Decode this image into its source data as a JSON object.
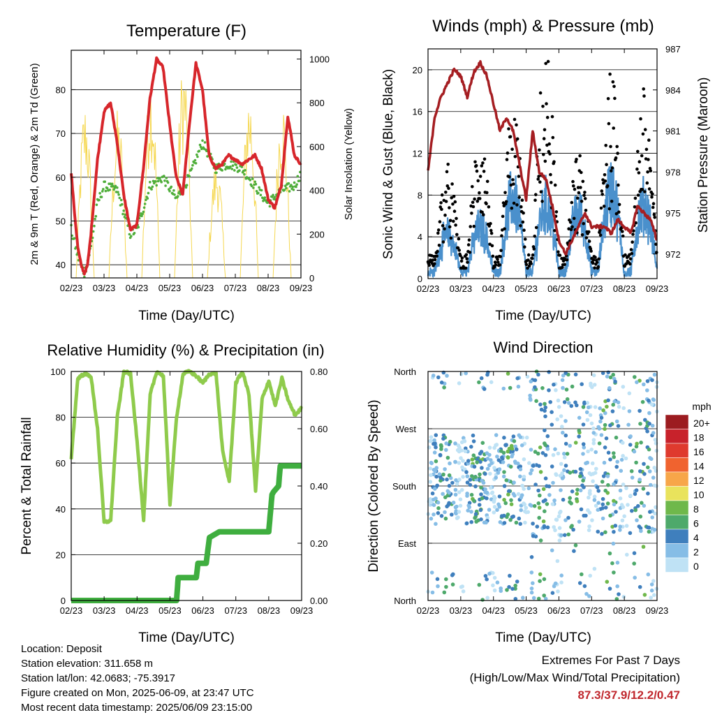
{
  "colors": {
    "temp": "#d7262b",
    "dew": "#4fae3a",
    "solar": "#f5d750",
    "gust": "#000000",
    "sonic": "#4a90cc",
    "pressure": "#a51e22",
    "rh": "#8fcb4c",
    "precip": "#3fae3f"
  },
  "footer": {
    "location": "Location: Deposit",
    "elevation": "Station elevation: 311.658 m",
    "latlon": "Station lat/lon: 42.0683; -75.3917",
    "created": "Figure created on Mon, 2025-06-09, at 23:47 UTC",
    "recent": "Most recent data timestamp: 2025/06/09 23:15:00",
    "extremes_title": "Extremes For Past 7 Days",
    "extremes_sub": "(High/Low/Max Wind/Total Precipitation)",
    "extremes_values": "87.3/37.9/12.2/0.47"
  },
  "chart_data": [
    {
      "id": "temperature",
      "type": "line",
      "title": "Temperature (F)",
      "xlabel": "Time (Day/UTC)",
      "ylabel": "2m & 9m T (Red, Orange) & 2m Td (Green)",
      "ylabel_right": "Solar Insolation (Yellow)",
      "x_ticks": [
        "02/23",
        "03/23",
        "04/23",
        "05/23",
        "06/23",
        "07/23",
        "08/23",
        "09/23"
      ],
      "ylim": [
        37,
        89
      ],
      "y_ticks": [
        40,
        50,
        60,
        70,
        80
      ],
      "y2lim": [
        0,
        1040
      ],
      "y2_ticks": [
        0,
        200,
        400,
        600,
        800,
        1000
      ],
      "grid": true,
      "series": [
        {
          "key": "temp",
          "x": [
            0,
            0.1,
            0.2,
            0.3,
            0.4,
            0.5,
            0.6,
            0.8,
            1.0,
            1.2,
            1.4,
            1.6,
            1.8,
            2.0,
            2.2,
            2.4,
            2.6,
            2.8,
            3.0,
            3.2,
            3.4,
            3.6,
            3.8,
            4.0,
            4.2,
            4.4,
            4.6,
            4.8,
            5.0,
            5.2,
            5.4,
            5.6,
            5.8,
            6.0,
            6.2,
            6.4,
            6.6,
            6.8,
            7.0
          ],
          "y": [
            61,
            52,
            44,
            40,
            38,
            40,
            47,
            64,
            75,
            77,
            68,
            56,
            48,
            49,
            62,
            78,
            87,
            85,
            72,
            60,
            56,
            72,
            86,
            80,
            65,
            62,
            63,
            65,
            64,
            63,
            64,
            65,
            62,
            55,
            53,
            58,
            74,
            65,
            63
          ]
        },
        {
          "key": "dew",
          "x": [
            0,
            0.2,
            0.4,
            0.6,
            0.8,
            1.0,
            1.4,
            1.8,
            2.0,
            2.4,
            2.8,
            3.2,
            3.6,
            4.0,
            4.4,
            4.8,
            5.2,
            5.6,
            6.0,
            6.4,
            6.8,
            7.0
          ],
          "y": [
            48,
            42,
            38,
            44,
            54,
            58,
            57,
            47,
            48,
            58,
            60,
            55,
            60,
            68,
            62,
            63,
            62,
            58,
            54,
            57,
            58,
            61
          ]
        },
        {
          "key": "solar",
          "type": "area",
          "daily_peaks": [
            820,
            780,
            960,
            1020,
            560,
            890,
            860
          ]
        }
      ]
    },
    {
      "id": "winds",
      "type": "scatter",
      "title": "Winds (mph) & Pressure (mb)",
      "xlabel": "Time (Day/UTC)",
      "ylabel": "Sonic Wind & Gust (Blue, Black)",
      "ylabel_right": "Station Pressure (Maroon)",
      "x_ticks": [
        "02/23",
        "03/23",
        "04/23",
        "05/23",
        "06/23",
        "07/23",
        "08/23",
        "09/23"
      ],
      "ylim": [
        0,
        22
      ],
      "y_ticks": [
        0,
        4,
        8,
        12,
        16,
        20
      ],
      "y2lim": [
        970.2,
        987
      ],
      "y2_ticks": [
        972,
        975,
        978,
        981,
        984,
        987
      ],
      "grid": true,
      "series": [
        {
          "key": "gust",
          "name": "Gust",
          "daily_peak": [
            9,
            13,
            15,
            20,
            10,
            19,
            17,
            18
          ]
        },
        {
          "key": "sonic",
          "name": "Sonic Wind",
          "daily_peak": [
            5,
            6,
            10,
            9,
            8,
            11,
            9,
            10
          ]
        },
        {
          "key": "pressure",
          "name": "Station Pressure",
          "x": [
            0,
            0.2,
            0.4,
            0.6,
            0.8,
            1.0,
            1.2,
            1.4,
            1.6,
            1.8,
            2.0,
            2.2,
            2.4,
            2.6,
            2.8,
            3.0,
            3.2,
            3.4,
            3.6,
            3.8,
            4.0,
            4.2,
            4.4,
            4.6,
            4.8,
            5.0,
            5.2,
            5.4,
            5.6,
            5.8,
            6.0,
            6.2,
            6.4,
            6.6,
            6.8,
            7.0
          ],
          "y": [
            978,
            982,
            983.5,
            984.5,
            985.5,
            985,
            983.5,
            985.3,
            986,
            985,
            983,
            981,
            982,
            981,
            978.5,
            976,
            981,
            978,
            977.5,
            975.5,
            973,
            972,
            973,
            974,
            975,
            974,
            974,
            974,
            973.5,
            974.5,
            974,
            973.5,
            975.5,
            975,
            974.5,
            973
          ]
        }
      ]
    },
    {
      "id": "humidity",
      "type": "line",
      "title": "Relative Humidity (%) & Precipitation (in)",
      "xlabel": "Time (Day/UTC)",
      "ylabel": "Percent & Total Rainfall",
      "x_ticks": [
        "02/23",
        "03/23",
        "04/23",
        "05/23",
        "06/23",
        "07/23",
        "08/23",
        "09/23"
      ],
      "ylim": [
        0,
        100
      ],
      "y_ticks": [
        0,
        20,
        40,
        60,
        80,
        100
      ],
      "y2lim": [
        0,
        0.8
      ],
      "y2_ticks": [
        "0.00",
        "0.20",
        "0.40",
        "0.60",
        "0.80"
      ],
      "grid": true,
      "series": [
        {
          "key": "rh",
          "name": "Relative Humidity",
          "x": [
            0,
            0.2,
            0.4,
            0.6,
            0.8,
            1.0,
            1.2,
            1.4,
            1.6,
            1.8,
            2.0,
            2.2,
            2.4,
            2.6,
            2.8,
            3.0,
            3.2,
            3.4,
            3.6,
            3.8,
            4.0,
            4.2,
            4.4,
            4.6,
            4.8,
            5.0,
            5.2,
            5.4,
            5.6,
            5.8,
            6.0,
            6.2,
            6.4,
            6.6,
            6.8,
            7.0
          ],
          "y": [
            62,
            97,
            99,
            98,
            75,
            34,
            35,
            80,
            100,
            99,
            70,
            35,
            90,
            100,
            98,
            42,
            80,
            99,
            100,
            98,
            95,
            99,
            99,
            65,
            52,
            95,
            100,
            90,
            48,
            88,
            96,
            85,
            97,
            87,
            81,
            84
          ]
        },
        {
          "key": "precip",
          "name": "Total Precipitation",
          "x": [
            0,
            3.2,
            3.25,
            3.45,
            3.5,
            3.8,
            3.85,
            4.1,
            4.2,
            4.5,
            4.55,
            6.0,
            6.1,
            6.15,
            6.3,
            6.35,
            7.0
          ],
          "y": [
            0,
            0,
            0.08,
            0.08,
            0.08,
            0.08,
            0.13,
            0.13,
            0.22,
            0.24,
            0.24,
            0.24,
            0.37,
            0.38,
            0.4,
            0.47,
            0.47
          ]
        }
      ]
    },
    {
      "id": "wind-direction",
      "type": "scatter",
      "title": "Wind Direction",
      "xlabel": "Time (Day/UTC)",
      "ylabel": "Direction (Colored By Speed)",
      "x_ticks": [
        "02/23",
        "03/23",
        "04/23",
        "05/23",
        "06/23",
        "07/23",
        "08/23",
        "09/23"
      ],
      "y_ticks": [
        "North",
        "East",
        "South",
        "West",
        "North"
      ],
      "ylim": [
        0,
        360
      ],
      "grid": true,
      "colorbar_title": "mph",
      "colorbar": [
        {
          "label": "20+",
          "color": "#9c1c20"
        },
        {
          "label": "18",
          "color": "#c8222b"
        },
        {
          "label": "16",
          "color": "#df3a2e"
        },
        {
          "label": "14",
          "color": "#f0632f"
        },
        {
          "label": "12",
          "color": "#f7a649"
        },
        {
          "label": "10",
          "color": "#e9e35c"
        },
        {
          "label": "8",
          "color": "#6fb84b"
        },
        {
          "label": "6",
          "color": "#4ea96b"
        },
        {
          "label": "4",
          "color": "#3f7fbd"
        },
        {
          "label": "2",
          "color": "#86bde6"
        },
        {
          "label": "0",
          "color": "#bfe2f5"
        }
      ]
    }
  ]
}
